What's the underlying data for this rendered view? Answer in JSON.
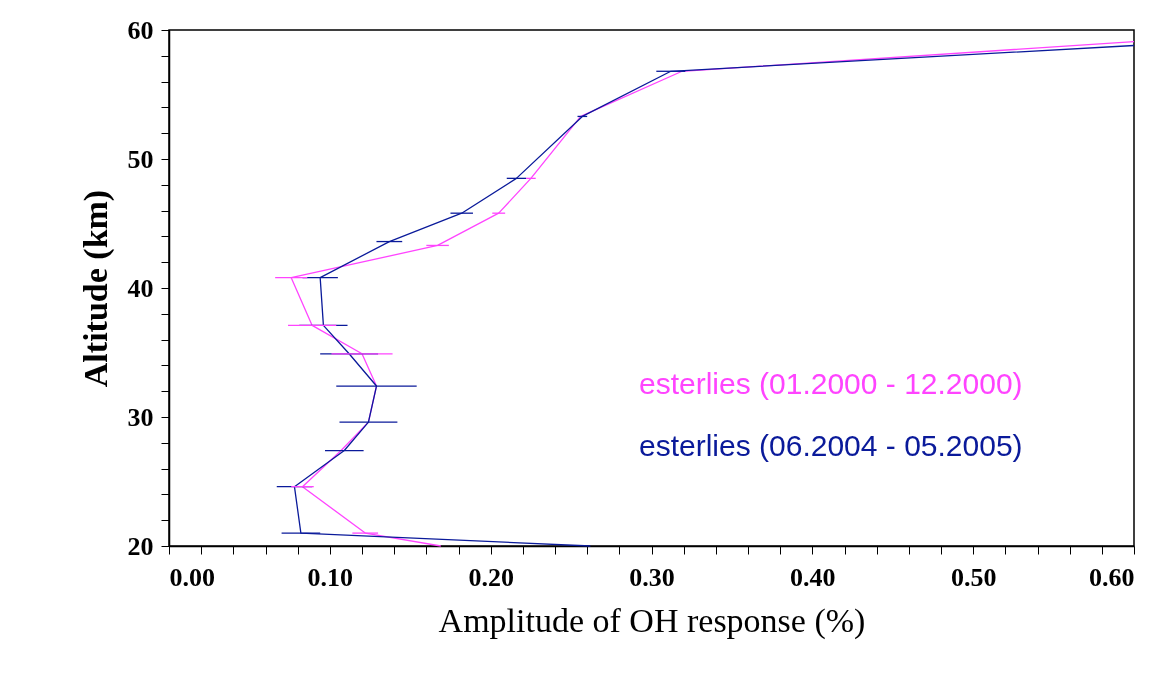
{
  "chart_data": {
    "type": "line",
    "xlabel": "Amplitude of OH response (%)",
    "ylabel": "Altitude (km)",
    "xlim": [
      0,
      0.6
    ],
    "ylim": [
      20,
      60
    ],
    "xticks": [
      {
        "value": 0,
        "label": "0.00"
      },
      {
        "value": 0.02,
        "label": null
      },
      {
        "value": 0.04,
        "label": null
      },
      {
        "value": 0.06,
        "label": null
      },
      {
        "value": 0.08,
        "label": null
      },
      {
        "value": 0.1,
        "label": "0.10"
      },
      {
        "value": 0.12,
        "label": null
      },
      {
        "value": 0.14,
        "label": null
      },
      {
        "value": 0.16,
        "label": null
      },
      {
        "value": 0.18,
        "label": null
      },
      {
        "value": 0.2,
        "label": "0.20"
      },
      {
        "value": 0.22,
        "label": null
      },
      {
        "value": 0.24,
        "label": null
      },
      {
        "value": 0.26,
        "label": null
      },
      {
        "value": 0.28,
        "label": null
      },
      {
        "value": 0.3,
        "label": "0.30"
      },
      {
        "value": 0.32,
        "label": null
      },
      {
        "value": 0.34,
        "label": null
      },
      {
        "value": 0.36,
        "label": null
      },
      {
        "value": 0.38,
        "label": null
      },
      {
        "value": 0.4,
        "label": "0.40"
      },
      {
        "value": 0.42,
        "label": null
      },
      {
        "value": 0.44,
        "label": null
      },
      {
        "value": 0.46,
        "label": null
      },
      {
        "value": 0.48,
        "label": null
      },
      {
        "value": 0.5,
        "label": "0.50"
      },
      {
        "value": 0.52,
        "label": null
      },
      {
        "value": 0.54,
        "label": null
      },
      {
        "value": 0.56,
        "label": null
      },
      {
        "value": 0.58,
        "label": null
      },
      {
        "value": 0.6,
        "label": "0.60"
      }
    ],
    "yticks": [
      20,
      {
        "value": 22,
        "label": null
      },
      {
        "value": 24,
        "label": null
      },
      {
        "value": 26,
        "label": null
      },
      {
        "value": 28,
        "label": null
      },
      30,
      {
        "value": 32,
        "label": null
      },
      {
        "value": 34,
        "label": null
      },
      {
        "value": 36,
        "label": null
      },
      {
        "value": 38,
        "label": null
      },
      40,
      {
        "value": 42,
        "label": null
      },
      {
        "value": 44,
        "label": null
      },
      {
        "value": 46,
        "label": null
      },
      {
        "value": 48,
        "label": null
      },
      50,
      {
        "value": 52,
        "label": null
      },
      {
        "value": 54,
        "label": null
      },
      {
        "value": 56,
        "label": null
      },
      {
        "value": 58,
        "label": null
      },
      60
    ],
    "legend": "right",
    "grid": false,
    "marker": "none",
    "line_style": "solid",
    "series": [
      {
        "name": "esterlies (01.2000 - 12.2000)",
        "color": "#ff44ff",
        "x": [
          0.169,
          0.122,
          0.083,
          0.107,
          0.124,
          0.129,
          0.12,
          0.089,
          0.076,
          0.167,
          0.205,
          0.225,
          0.256,
          0.319,
          0.6
        ],
        "values": [
          20,
          21.0,
          24.6,
          27.4,
          29.6,
          32.4,
          34.9,
          37.1,
          40.8,
          43.3,
          45.8,
          48.5,
          53.3,
          56.8,
          59.1
        ],
        "xerrors": [
          null,
          0.008,
          0.007,
          null,
          null,
          null,
          0.019,
          0.015,
          0.01,
          0.007,
          0.004,
          0.003,
          null,
          null,
          null
        ]
      },
      {
        "name": "esterlies (06.2004 - 05.2005)",
        "color": "#0a1a9a",
        "x": [
          0.262,
          0.082,
          0.078,
          0.109,
          0.124,
          0.129,
          0.112,
          0.096,
          0.094,
          0.137,
          0.182,
          0.216,
          0.257,
          0.312,
          0.6
        ],
        "values": [
          20,
          21.0,
          24.6,
          27.4,
          29.6,
          32.4,
          34.9,
          37.1,
          40.8,
          43.6,
          45.8,
          48.5,
          53.3,
          56.8,
          58.8
        ],
        "xerrors": [
          null,
          0.012,
          0.011,
          0.012,
          0.018,
          0.025,
          0.018,
          0.015,
          0.011,
          0.008,
          0.007,
          0.006,
          0.003,
          0.009,
          null
        ]
      }
    ]
  }
}
